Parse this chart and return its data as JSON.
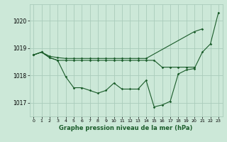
{
  "background_color": "#cce8d8",
  "plot_bg_color": "#cce8d8",
  "grid_color": "#aaccbb",
  "line_color": "#1a5c2a",
  "marker_color": "#1a5c2a",
  "title": "Graphe pression niveau de la mer (hPa)",
  "ylabel_ticks": [
    1017,
    1018,
    1019,
    1020
  ],
  "x_ticks": [
    0,
    1,
    2,
    3,
    4,
    5,
    6,
    7,
    8,
    9,
    10,
    11,
    12,
    13,
    14,
    15,
    16,
    17,
    18,
    19,
    20,
    21,
    22,
    23
  ],
  "xlim": [
    -0.5,
    23.5
  ],
  "ylim": [
    1016.5,
    1020.6
  ],
  "series": {
    "line1_x": [
      0,
      1,
      2,
      3,
      4,
      5,
      6,
      7,
      8,
      9,
      10,
      11,
      12,
      13,
      14,
      20,
      21
    ],
    "line1_y": [
      1018.75,
      1018.85,
      1018.7,
      1018.65,
      1018.62,
      1018.62,
      1018.62,
      1018.62,
      1018.62,
      1018.62,
      1018.62,
      1018.62,
      1018.62,
      1018.62,
      1018.62,
      1019.6,
      1019.7
    ],
    "line2_x": [
      0,
      1,
      2,
      3,
      4,
      5,
      6,
      7,
      8,
      9,
      10,
      11,
      12,
      13,
      14,
      15,
      16,
      17,
      18,
      19,
      20,
      21,
      22,
      23
    ],
    "line2_y": [
      1018.75,
      1018.85,
      1018.65,
      1018.55,
      1017.95,
      1017.55,
      1017.55,
      1017.45,
      1017.35,
      1017.45,
      1017.72,
      1017.5,
      1017.5,
      1017.5,
      1017.82,
      1016.85,
      1016.92,
      1017.05,
      1018.05,
      1018.2,
      1018.25,
      1018.85,
      1019.15,
      1020.3
    ],
    "line3_x": [
      0,
      1,
      2,
      3,
      4,
      5,
      6,
      7,
      8,
      9,
      10,
      11,
      12,
      13,
      14,
      15,
      16,
      17,
      18,
      19,
      20
    ],
    "line3_y": [
      1018.75,
      1018.85,
      1018.65,
      1018.55,
      1018.55,
      1018.55,
      1018.55,
      1018.55,
      1018.55,
      1018.55,
      1018.55,
      1018.55,
      1018.55,
      1018.55,
      1018.55,
      1018.55,
      1018.3,
      1018.3,
      1018.3,
      1018.3,
      1018.3
    ]
  }
}
